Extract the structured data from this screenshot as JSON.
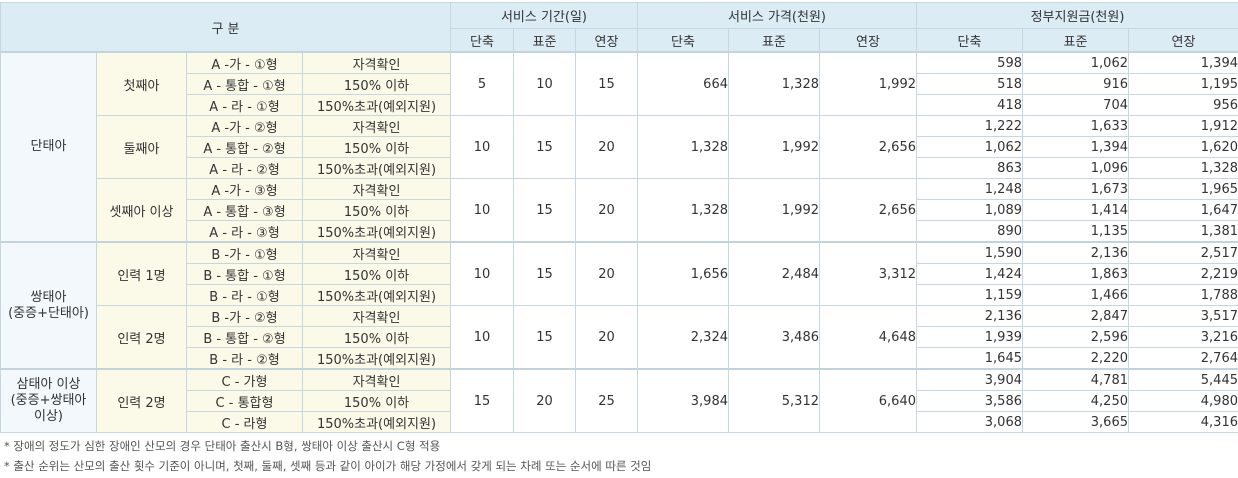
{
  "header": {
    "category": "구 분",
    "period": "서비스 기간(일)",
    "price": "서비스 가격(천원)",
    "gov": "정부지원금(천원)",
    "short": "단축",
    "standard": "표준",
    "extend": "연장"
  },
  "groups": [
    {
      "name": "단태아",
      "subs": [
        {
          "name": "첫째아",
          "period": [
            "5",
            "10",
            "15"
          ],
          "price": [
            "664",
            "1,328",
            "1,992"
          ],
          "rows": [
            {
              "type": "A -가 - ①형",
              "cond": "자격확인",
              "gov": [
                "598",
                "1,062",
                "1,394"
              ]
            },
            {
              "type": "A - 통합 - ①형",
              "cond": "150% 이하",
              "gov": [
                "518",
                "916",
                "1,195"
              ]
            },
            {
              "type": "A - 라 - ①형",
              "cond": "150%초과(예외지원)",
              "gov": [
                "418",
                "704",
                "956"
              ]
            }
          ]
        },
        {
          "name": "둘째아",
          "period": [
            "10",
            "15",
            "20"
          ],
          "price": [
            "1,328",
            "1,992",
            "2,656"
          ],
          "rows": [
            {
              "type": "A -가 - ②형",
              "cond": "자격확인",
              "gov": [
                "1,222",
                "1,633",
                "1,912"
              ]
            },
            {
              "type": "A - 통합 - ②형",
              "cond": "150% 이하",
              "gov": [
                "1,062",
                "1,394",
                "1,620"
              ]
            },
            {
              "type": "A - 라 - ②형",
              "cond": "150%초과(예외지원)",
              "gov": [
                "863",
                "1,096",
                "1,328"
              ]
            }
          ]
        },
        {
          "name": "셋째아 이상",
          "period": [
            "10",
            "15",
            "20"
          ],
          "price": [
            "1,328",
            "1,992",
            "2,656"
          ],
          "rows": [
            {
              "type": "A -가 - ③형",
              "cond": "자격확인",
              "gov": [
                "1,248",
                "1,673",
                "1,965"
              ]
            },
            {
              "type": "A - 통합 - ③형",
              "cond": "150% 이하",
              "gov": [
                "1,089",
                "1,414",
                "1,647"
              ]
            },
            {
              "type": "A - 라 - ③형",
              "cond": "150%초과(예외지원)",
              "gov": [
                "890",
                "1,135",
                "1,381"
              ]
            }
          ]
        }
      ]
    },
    {
      "name": "쌍태아\n(중증+단태아)",
      "subs": [
        {
          "name": "인력 1명",
          "period": [
            "10",
            "15",
            "20"
          ],
          "price": [
            "1,656",
            "2,484",
            "3,312"
          ],
          "rows": [
            {
              "type": "B -가 - ①형",
              "cond": "자격확인",
              "gov": [
                "1,590",
                "2,136",
                "2,517"
              ]
            },
            {
              "type": "B - 통합 - ①형",
              "cond": "150% 이하",
              "gov": [
                "1,424",
                "1,863",
                "2,219"
              ]
            },
            {
              "type": "B - 라 - ①형",
              "cond": "150%초과(예외지원)",
              "gov": [
                "1,159",
                "1,466",
                "1,788"
              ]
            }
          ]
        },
        {
          "name": "인력 2명",
          "period": [
            "10",
            "15",
            "20"
          ],
          "price": [
            "2,324",
            "3,486",
            "4,648"
          ],
          "rows": [
            {
              "type": "B -가 - ②형",
              "cond": "자격확인",
              "gov": [
                "2,136",
                "2,847",
                "3,517"
              ]
            },
            {
              "type": "B - 통합 - ②형",
              "cond": "150% 이하",
              "gov": [
                "1,939",
                "2,596",
                "3,216"
              ]
            },
            {
              "type": "B - 라 - ②형",
              "cond": "150%초과(예외지원)",
              "gov": [
                "1,645",
                "2,220",
                "2,764"
              ]
            }
          ]
        }
      ]
    },
    {
      "name": "삼태아 이상\n(중증+쌍태아\n이상)",
      "subs": [
        {
          "name": "인력 2명",
          "period": [
            "15",
            "20",
            "25"
          ],
          "price": [
            "3,984",
            "5,312",
            "6,640"
          ],
          "rows": [
            {
              "type": "C - 가형",
              "cond": "자격확인",
              "gov": [
                "3,904",
                "4,781",
                "5,445"
              ]
            },
            {
              "type": "C - 통합형",
              "cond": "150% 이하",
              "gov": [
                "3,586",
                "4,250",
                "4,980"
              ]
            },
            {
              "type": "C - 라형",
              "cond": "150%초과(예외지원)",
              "gov": [
                "3,068",
                "3,665",
                "4,316"
              ]
            }
          ]
        }
      ]
    }
  ],
  "notes": [
    "* 장애의 정도가 심한 장애인 산모의 경우 단태아 출산시 B형, 쌍태아 이상 출산시 C형 적용",
    "* 출산 순위는 산모의 출산 횟수 기준이 아니며, 첫째, 둘째, 셋째 등과 같이 아이가 해당 가정에서 갖게 되는 차례 또는 순서에 따른 것임"
  ]
}
